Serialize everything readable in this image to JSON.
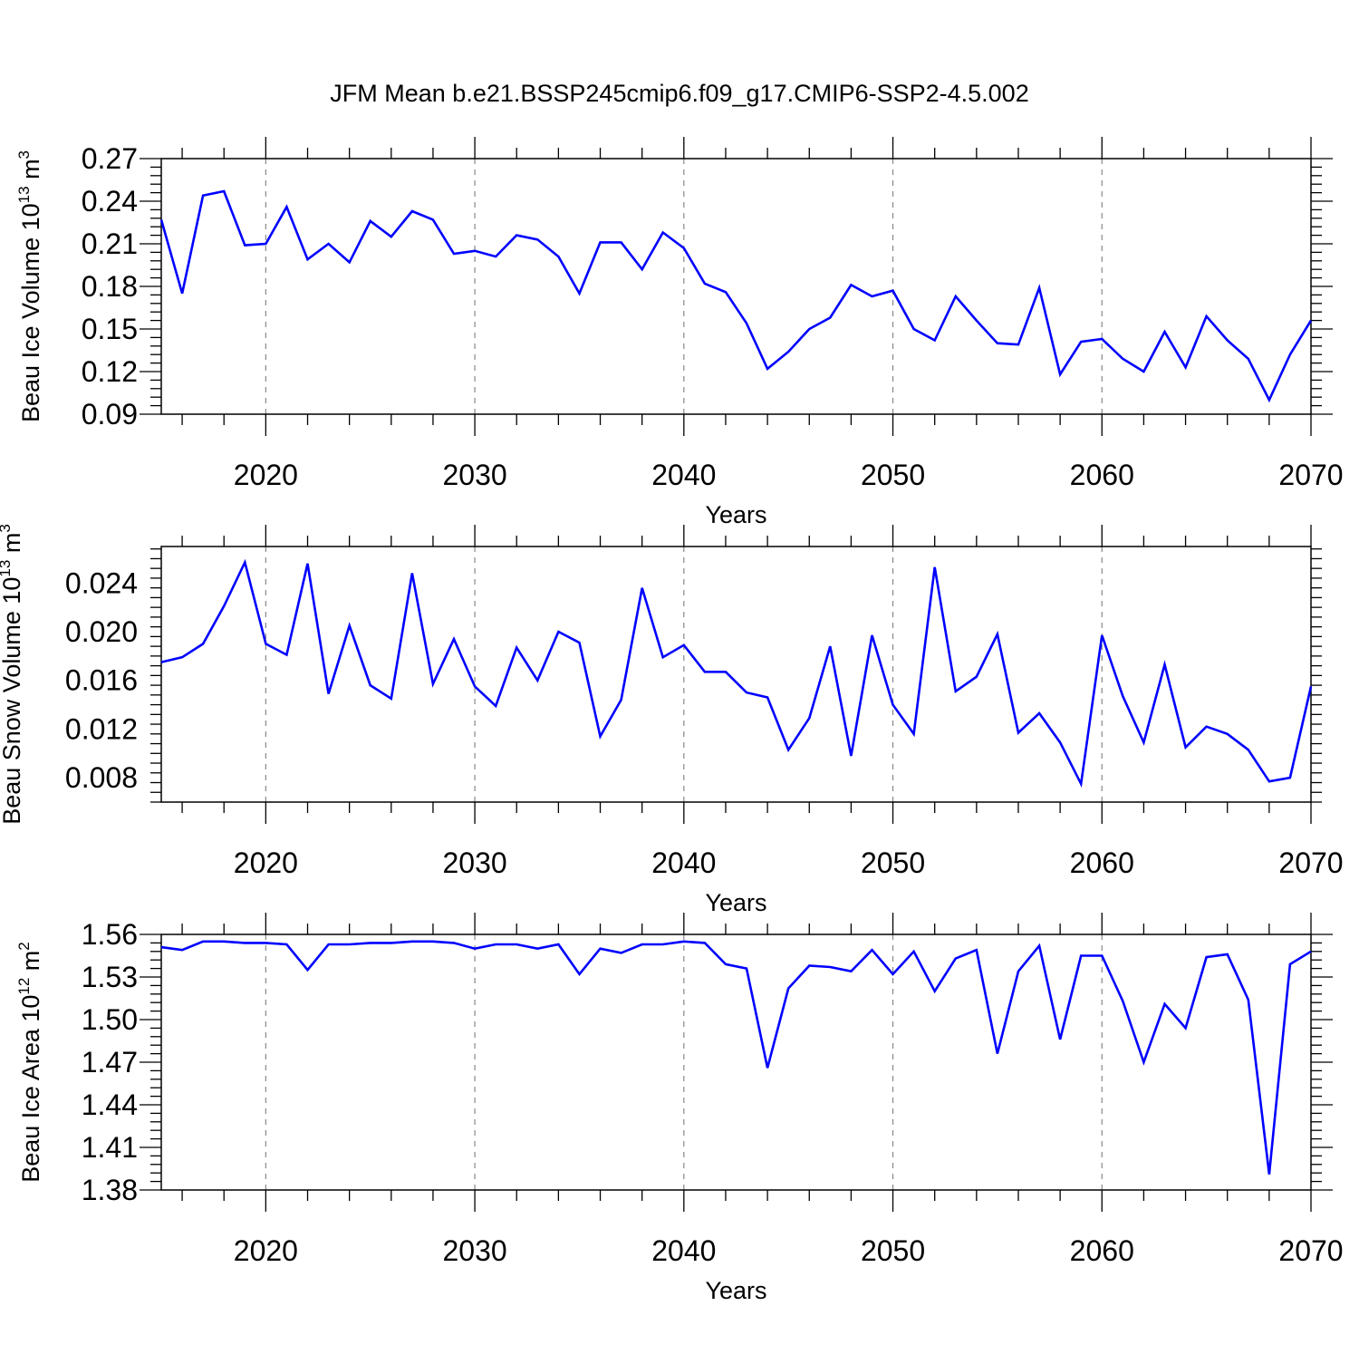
{
  "figure": {
    "title": "JFM Mean b.e21.BSSP245cmip6.f09_g17.CMIP6-SSP2-4.5.002",
    "line_color": "#0000ff",
    "grid_color": "#888888"
  },
  "chart_data": [
    {
      "type": "line",
      "xlabel": "Years",
      "ylabel": "Beau Ice Volume 10",
      "ylabel_exp": "13",
      "ylabel_unit": "m",
      "ylabel_unit_exp": "3",
      "xlim": [
        2015,
        2070
      ],
      "ylim": [
        0.09,
        0.27
      ],
      "yticks": [
        0.09,
        0.12,
        0.15,
        0.18,
        0.21,
        0.24,
        0.27
      ],
      "ytick_labels": [
        "0.09",
        "0.12",
        "0.15",
        "0.18",
        "0.21",
        "0.24",
        "0.27"
      ],
      "xticks": [
        2020,
        2030,
        2040,
        2050,
        2060,
        2070
      ],
      "xtick_labels": [
        "2020",
        "2030",
        "2040",
        "2050",
        "2060",
        "2070"
      ],
      "grid": "vertical dashed at major x ticks",
      "series": [
        {
          "x": [
            2015,
            2016,
            2017,
            2018,
            2019,
            2020,
            2021,
            2022,
            2023,
            2024,
            2025,
            2026,
            2027,
            2028,
            2029,
            2030,
            2031,
            2032,
            2033,
            2034,
            2035,
            2036,
            2037,
            2038,
            2039,
            2040,
            2041,
            2042,
            2043,
            2044,
            2045,
            2046,
            2047,
            2048,
            2049,
            2050,
            2051,
            2052,
            2053,
            2054,
            2055,
            2056,
            2057,
            2058,
            2059,
            2060,
            2061,
            2062,
            2063,
            2064,
            2065,
            2066,
            2067,
            2068,
            2069,
            2070
          ],
          "values": [
            0.227,
            0.175,
            0.244,
            0.247,
            0.209,
            0.21,
            0.236,
            0.199,
            0.21,
            0.197,
            0.226,
            0.215,
            0.233,
            0.227,
            0.203,
            0.205,
            0.201,
            0.216,
            0.213,
            0.201,
            0.175,
            0.211,
            0.211,
            0.192,
            0.218,
            0.207,
            0.182,
            0.176,
            0.154,
            0.122,
            0.134,
            0.15,
            0.158,
            0.181,
            0.173,
            0.177,
            0.15,
            0.142,
            0.173,
            0.156,
            0.14,
            0.139,
            0.179,
            0.118,
            0.141,
            0.143,
            0.129,
            0.12,
            0.148,
            0.123,
            0.159,
            0.142,
            0.129,
            0.1,
            0.132,
            0.156
          ]
        }
      ]
    },
    {
      "type": "line",
      "xlabel": "Years",
      "ylabel": "Beau Snow Volume 10",
      "ylabel_exp": "13",
      "ylabel_unit": "m",
      "ylabel_unit_exp": "3",
      "xlim": [
        2015,
        2070
      ],
      "ylim": [
        0.006,
        0.027
      ],
      "yticks": [
        0.008,
        0.012,
        0.016,
        0.02,
        0.024
      ],
      "ytick_labels": [
        "0.008",
        "0.012",
        "0.016",
        "0.020",
        "0.024"
      ],
      "xticks": [
        2020,
        2030,
        2040,
        2050,
        2060,
        2070
      ],
      "xtick_labels": [
        "2020",
        "2030",
        "2040",
        "2050",
        "2060",
        "2070"
      ],
      "grid": "vertical dashed at major x ticks",
      "series": [
        {
          "x": [
            2015,
            2016,
            2017,
            2018,
            2019,
            2020,
            2021,
            2022,
            2023,
            2024,
            2025,
            2026,
            2027,
            2028,
            2029,
            2030,
            2031,
            2032,
            2033,
            2034,
            2035,
            2036,
            2037,
            2038,
            2039,
            2040,
            2041,
            2042,
            2043,
            2044,
            2045,
            2046,
            2047,
            2048,
            2049,
            2050,
            2051,
            2052,
            2053,
            2054,
            2055,
            2056,
            2057,
            2058,
            2059,
            2060,
            2061,
            2062,
            2063,
            2064,
            2065,
            2066,
            2067,
            2068,
            2069,
            2070
          ],
          "values": [
            0.0175,
            0.0179,
            0.019,
            0.0221,
            0.0257,
            0.019,
            0.0181,
            0.0256,
            0.0149,
            0.0205,
            0.0156,
            0.0145,
            0.0248,
            0.0157,
            0.0194,
            0.0155,
            0.0139,
            0.0187,
            0.016,
            0.02,
            0.0191,
            0.0114,
            0.0144,
            0.0236,
            0.0179,
            0.0189,
            0.0167,
            0.0167,
            0.015,
            0.0146,
            0.0103,
            0.0129,
            0.0188,
            0.0098,
            0.0197,
            0.014,
            0.0116,
            0.0253,
            0.0151,
            0.0163,
            0.0198,
            0.0117,
            0.0133,
            0.0109,
            0.0075,
            0.0197,
            0.0147,
            0.0109,
            0.0173,
            0.0105,
            0.0122,
            0.0116,
            0.0103,
            0.0077,
            0.008,
            0.0155
          ]
        }
      ]
    },
    {
      "type": "line",
      "xlabel": "Years",
      "ylabel": "Beau Ice Area 10",
      "ylabel_exp": "12",
      "ylabel_unit": "m",
      "ylabel_unit_exp": "2",
      "xlim": [
        2015,
        2070
      ],
      "ylim": [
        1.38,
        1.56
      ],
      "yticks": [
        1.38,
        1.41,
        1.44,
        1.47,
        1.5,
        1.53,
        1.56
      ],
      "ytick_labels": [
        "1.38",
        "1.41",
        "1.44",
        "1.47",
        "1.50",
        "1.53",
        "1.56"
      ],
      "xticks": [
        2020,
        2030,
        2040,
        2050,
        2060,
        2070
      ],
      "xtick_labels": [
        "2020",
        "2030",
        "2040",
        "2050",
        "2060",
        "2070"
      ],
      "grid": "vertical dashed at major x ticks",
      "series": [
        {
          "x": [
            2015,
            2016,
            2017,
            2018,
            2019,
            2020,
            2021,
            2022,
            2023,
            2024,
            2025,
            2026,
            2027,
            2028,
            2029,
            2030,
            2031,
            2032,
            2033,
            2034,
            2035,
            2036,
            2037,
            2038,
            2039,
            2040,
            2041,
            2042,
            2043,
            2044,
            2045,
            2046,
            2047,
            2048,
            2049,
            2050,
            2051,
            2052,
            2053,
            2054,
            2055,
            2056,
            2057,
            2058,
            2059,
            2060,
            2061,
            2062,
            2063,
            2064,
            2065,
            2066,
            2067,
            2068,
            2069,
            2070
          ],
          "values": [
            1.551,
            1.549,
            1.555,
            1.555,
            1.554,
            1.554,
            1.553,
            1.535,
            1.553,
            1.553,
            1.554,
            1.554,
            1.555,
            1.555,
            1.554,
            1.55,
            1.553,
            1.553,
            1.55,
            1.553,
            1.532,
            1.55,
            1.547,
            1.553,
            1.553,
            1.555,
            1.554,
            1.539,
            1.536,
            1.466,
            1.522,
            1.538,
            1.537,
            1.534,
            1.549,
            1.532,
            1.548,
            1.52,
            1.543,
            1.549,
            1.476,
            1.534,
            1.552,
            1.486,
            1.545,
            1.545,
            1.513,
            1.47,
            1.511,
            1.494,
            1.544,
            1.546,
            1.514,
            1.391,
            1.539,
            1.548
          ]
        }
      ]
    }
  ]
}
